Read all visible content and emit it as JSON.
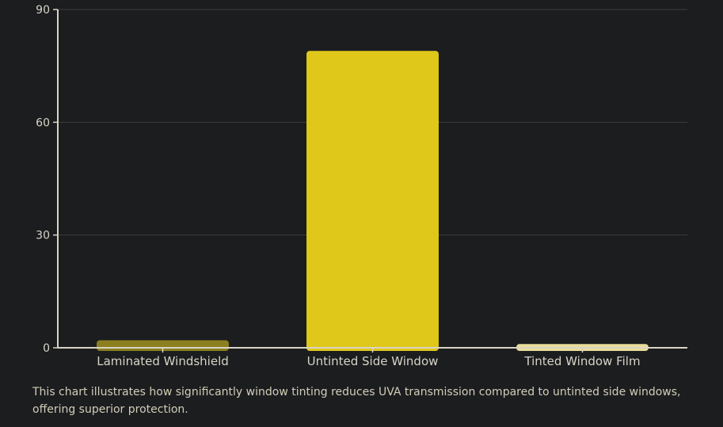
{
  "chart_data": {
    "type": "bar",
    "categories": [
      "Laminated Windshield",
      "Untinted Side Window",
      "Tinted Window Film"
    ],
    "values": [
      2,
      79,
      1
    ],
    "ylim": [
      0,
      90
    ],
    "yticks": [
      0,
      30,
      60,
      90
    ],
    "grid": true,
    "legend": "none",
    "colors": [
      "#8c7f1f",
      "#e0c81b",
      "#e9dd98"
    ]
  },
  "caption": "This chart illustrates how significantly window tinting reduces UVA transmission compared to untinted side windows, offering superior protection.",
  "colors": {
    "background": "#1b1d1f",
    "axis": "#d8d4c6",
    "grid": "#3b3d3f",
    "text": "#d8d4c6"
  }
}
